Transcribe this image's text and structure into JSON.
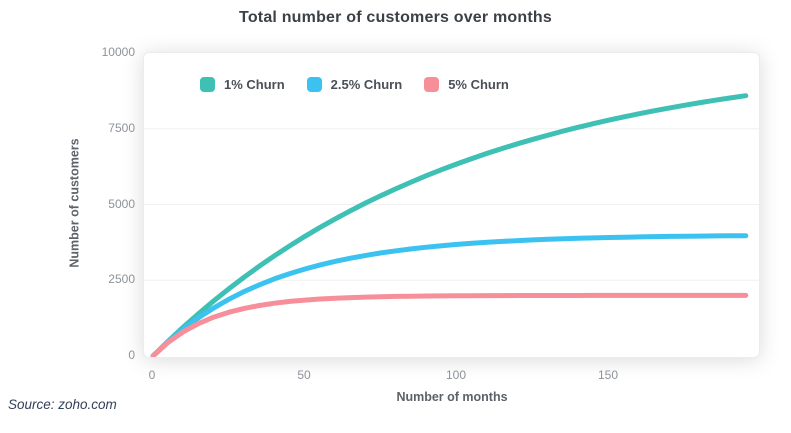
{
  "figure": {
    "source": "Source: zoho.com"
  },
  "chart_data": {
    "type": "line",
    "title": "Total number of customers over months",
    "xlabel": "Number of months",
    "ylabel": "Number of customers",
    "xlim": [
      0,
      195
    ],
    "ylim": [
      0,
      10000
    ],
    "xticks": [
      0,
      50,
      100,
      150
    ],
    "yticks": [
      0,
      2500,
      5000,
      7500,
      10000
    ],
    "grid": "horizontal",
    "gridline_color": "#f0f0f1",
    "legend_position": "top-left-inside",
    "x": [
      0,
      5,
      10,
      15,
      20,
      25,
      30,
      35,
      40,
      45,
      50,
      55,
      60,
      65,
      70,
      75,
      80,
      85,
      90,
      95,
      100,
      105,
      110,
      115,
      120,
      125,
      130,
      135,
      140,
      145,
      150,
      155,
      160,
      165,
      170,
      175,
      180,
      185,
      190,
      195
    ],
    "series": [
      {
        "name": "1% Churn",
        "color": "#3fc0b4",
        "values": [
          0,
          490,
          956,
          1399,
          1821,
          2222,
          2603,
          2966,
          3310,
          3638,
          3950,
          4246,
          4528,
          4797,
          5052,
          5294,
          5525,
          5744,
          5953,
          6151,
          6340,
          6519,
          6690,
          6852,
          7006,
          7153,
          7292,
          7425,
          7551,
          7671,
          7785,
          7894,
          7997,
          8095,
          8189,
          8277,
          8362,
          8442,
          8519,
          8591
        ]
      },
      {
        "name": "2.5% Churn",
        "color": "#3cc2f0",
        "values": [
          0,
          476,
          895,
          1264,
          1589,
          1876,
          2128,
          2351,
          2547,
          2720,
          2872,
          3006,
          3124,
          3228,
          3320,
          3401,
          3472,
          3535,
          3590,
          3639,
          3682,
          3720,
          3753,
          3782,
          3808,
          3831,
          3851,
          3869,
          3885,
          3898,
          3910,
          3921,
          3930,
          3939,
          3946,
          3952,
          3958,
          3963,
          3967,
          3971
        ]
      },
      {
        "name": "5% Churn",
        "color": "#f78f9b",
        "values": [
          0,
          452,
          803,
          1073,
          1283,
          1445,
          1571,
          1668,
          1743,
          1801,
          1846,
          1881,
          1908,
          1929,
          1945,
          1957,
          1967,
          1974,
          1980,
          1985,
          1988,
          1991,
          1993,
          1994,
          1996,
          1997,
          1997,
          1998,
          1998,
          1999,
          1999,
          1999,
          1999,
          2000,
          2000,
          2000,
          2000,
          2000,
          2000,
          2000
        ]
      }
    ]
  }
}
